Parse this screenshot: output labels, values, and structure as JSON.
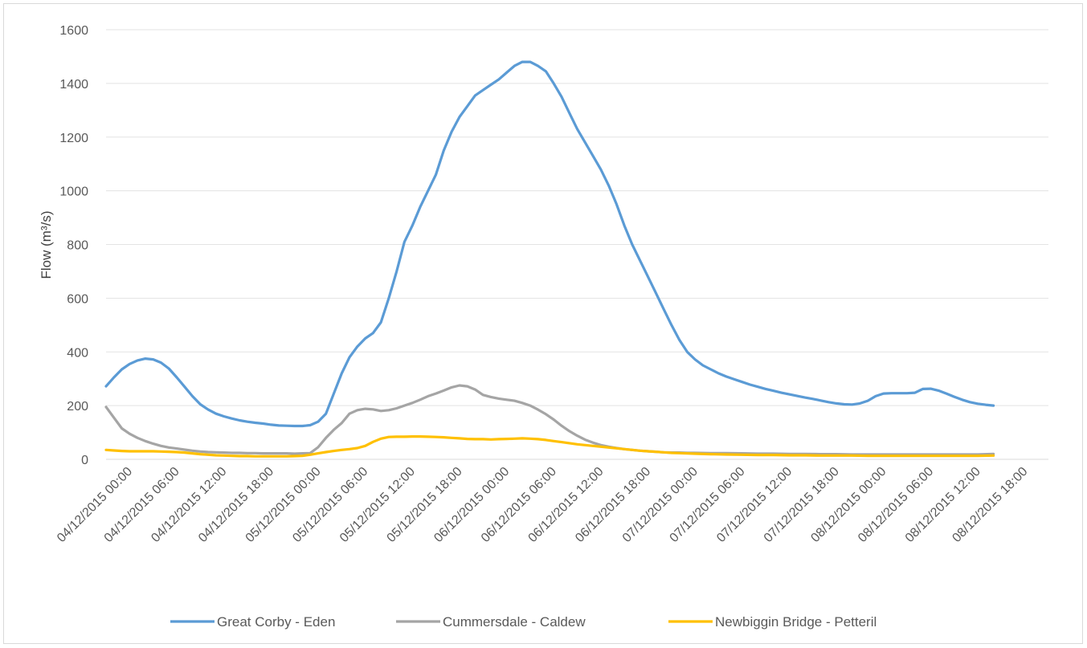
{
  "chart_data": {
    "type": "line",
    "title": "",
    "xlabel": "",
    "ylabel": "Flow (m³/s)",
    "ylim": [
      0,
      1600
    ],
    "yticks": [
      0,
      200,
      400,
      600,
      800,
      1000,
      1200,
      1400,
      1600
    ],
    "grid": "horizontal",
    "legend_position": "bottom",
    "x_unit": "hours from 04/12/2015 00:00",
    "xlim": [
      -3,
      117
    ],
    "x_tick_labels": [
      {
        "x": 0,
        "label": "04/12/2015 00:00"
      },
      {
        "x": 6,
        "label": "04/12/2015 06:00"
      },
      {
        "x": 12,
        "label": "04/12/2015 12:00"
      },
      {
        "x": 18,
        "label": "04/12/2015 18:00"
      },
      {
        "x": 24,
        "label": "05/12/2015 00:00"
      },
      {
        "x": 30,
        "label": "05/12/2015 06:00"
      },
      {
        "x": 36,
        "label": "05/12/2015 12:00"
      },
      {
        "x": 42,
        "label": "05/12/2015 18:00"
      },
      {
        "x": 48,
        "label": "06/12/2015 00:00"
      },
      {
        "x": 54,
        "label": "06/12/2015 06:00"
      },
      {
        "x": 60,
        "label": "06/12/2015 12:00"
      },
      {
        "x": 66,
        "label": "06/12/2015 18:00"
      },
      {
        "x": 72,
        "label": "07/12/2015 00:00"
      },
      {
        "x": 78,
        "label": "07/12/2015 06:00"
      },
      {
        "x": 84,
        "label": "07/12/2015 12:00"
      },
      {
        "x": 90,
        "label": "07/12/2015 18:00"
      },
      {
        "x": 96,
        "label": "08/12/2015 00:00"
      },
      {
        "x": 102,
        "label": "08/12/2015 06:00"
      },
      {
        "x": 108,
        "label": "08/12/2015 12:00"
      },
      {
        "x": 114,
        "label": "08/12/2015 18:00"
      }
    ],
    "series": [
      {
        "name": "Great Corby - Eden",
        "color": "#5b9bd5",
        "points": [
          [
            -3,
            272
          ],
          [
            -2,
            305
          ],
          [
            -1,
            335
          ],
          [
            0,
            355
          ],
          [
            1,
            368
          ],
          [
            2,
            375
          ],
          [
            3,
            372
          ],
          [
            4,
            360
          ],
          [
            5,
            338
          ],
          [
            6,
            305
          ],
          [
            7,
            270
          ],
          [
            8,
            235
          ],
          [
            9,
            205
          ],
          [
            10,
            185
          ],
          [
            11,
            170
          ],
          [
            12,
            160
          ],
          [
            13,
            152
          ],
          [
            14,
            145
          ],
          [
            15,
            140
          ],
          [
            16,
            136
          ],
          [
            17,
            133
          ],
          [
            18,
            129
          ],
          [
            19,
            126
          ],
          [
            20,
            125
          ],
          [
            21,
            124
          ],
          [
            22,
            124
          ],
          [
            23,
            127
          ],
          [
            24,
            140
          ],
          [
            25,
            170
          ],
          [
            26,
            245
          ],
          [
            27,
            320
          ],
          [
            28,
            380
          ],
          [
            29,
            420
          ],
          [
            30,
            450
          ],
          [
            31,
            470
          ],
          [
            32,
            510
          ],
          [
            33,
            600
          ],
          [
            34,
            700
          ],
          [
            35,
            810
          ],
          [
            36,
            870
          ],
          [
            37,
            940
          ],
          [
            38,
            1000
          ],
          [
            39,
            1060
          ],
          [
            40,
            1150
          ],
          [
            41,
            1220
          ],
          [
            42,
            1275
          ],
          [
            43,
            1315
          ],
          [
            44,
            1355
          ],
          [
            45,
            1375
          ],
          [
            46,
            1395
          ],
          [
            47,
            1415
          ],
          [
            48,
            1440
          ],
          [
            49,
            1465
          ],
          [
            50,
            1480
          ],
          [
            51,
            1480
          ],
          [
            52,
            1465
          ],
          [
            53,
            1445
          ],
          [
            54,
            1400
          ],
          [
            55,
            1350
          ],
          [
            56,
            1290
          ],
          [
            57,
            1230
          ],
          [
            58,
            1180
          ],
          [
            59,
            1130
          ],
          [
            60,
            1080
          ],
          [
            61,
            1020
          ],
          [
            62,
            950
          ],
          [
            63,
            870
          ],
          [
            64,
            800
          ],
          [
            65,
            740
          ],
          [
            66,
            680
          ],
          [
            67,
            620
          ],
          [
            68,
            560
          ],
          [
            69,
            500
          ],
          [
            70,
            445
          ],
          [
            71,
            400
          ],
          [
            72,
            372
          ],
          [
            73,
            350
          ],
          [
            74,
            335
          ],
          [
            75,
            320
          ],
          [
            76,
            308
          ],
          [
            77,
            298
          ],
          [
            78,
            288
          ],
          [
            79,
            278
          ],
          [
            80,
            270
          ],
          [
            81,
            262
          ],
          [
            82,
            255
          ],
          [
            83,
            248
          ],
          [
            84,
            242
          ],
          [
            85,
            236
          ],
          [
            86,
            230
          ],
          [
            87,
            225
          ],
          [
            88,
            219
          ],
          [
            89,
            213
          ],
          [
            90,
            208
          ],
          [
            91,
            205
          ],
          [
            92,
            204
          ],
          [
            93,
            208
          ],
          [
            94,
            218
          ],
          [
            95,
            235
          ],
          [
            96,
            245
          ],
          [
            97,
            246
          ],
          [
            98,
            246
          ],
          [
            99,
            246
          ],
          [
            100,
            248
          ],
          [
            101,
            262
          ],
          [
            102,
            263
          ],
          [
            103,
            256
          ],
          [
            104,
            245
          ],
          [
            105,
            233
          ],
          [
            106,
            222
          ],
          [
            107,
            213
          ],
          [
            108,
            207
          ],
          [
            109,
            203
          ],
          [
            110,
            200
          ]
        ]
      },
      {
        "name": "Cummersdale - Caldew",
        "color": "#a5a5a5",
        "points": [
          [
            -3,
            195
          ],
          [
            -2,
            155
          ],
          [
            -1,
            115
          ],
          [
            0,
            95
          ],
          [
            1,
            80
          ],
          [
            2,
            68
          ],
          [
            3,
            58
          ],
          [
            4,
            50
          ],
          [
            5,
            44
          ],
          [
            6,
            40
          ],
          [
            7,
            36
          ],
          [
            8,
            32
          ],
          [
            9,
            29
          ],
          [
            10,
            27
          ],
          [
            11,
            26
          ],
          [
            12,
            25
          ],
          [
            13,
            24
          ],
          [
            14,
            24
          ],
          [
            15,
            23
          ],
          [
            16,
            23
          ],
          [
            17,
            22
          ],
          [
            18,
            22
          ],
          [
            19,
            22
          ],
          [
            20,
            22
          ],
          [
            21,
            21
          ],
          [
            22,
            22
          ],
          [
            23,
            23
          ],
          [
            24,
            45
          ],
          [
            25,
            80
          ],
          [
            26,
            110
          ],
          [
            27,
            135
          ],
          [
            28,
            170
          ],
          [
            29,
            183
          ],
          [
            30,
            188
          ],
          [
            31,
            186
          ],
          [
            32,
            180
          ],
          [
            33,
            183
          ],
          [
            34,
            190
          ],
          [
            35,
            200
          ],
          [
            36,
            210
          ],
          [
            37,
            222
          ],
          [
            38,
            235
          ],
          [
            39,
            245
          ],
          [
            40,
            256
          ],
          [
            41,
            268
          ],
          [
            42,
            275
          ],
          [
            43,
            272
          ],
          [
            44,
            260
          ],
          [
            45,
            240
          ],
          [
            46,
            232
          ],
          [
            47,
            226
          ],
          [
            48,
            222
          ],
          [
            49,
            218
          ],
          [
            50,
            210
          ],
          [
            51,
            200
          ],
          [
            52,
            185
          ],
          [
            53,
            168
          ],
          [
            54,
            148
          ],
          [
            55,
            125
          ],
          [
            56,
            105
          ],
          [
            57,
            88
          ],
          [
            58,
            73
          ],
          [
            59,
            62
          ],
          [
            60,
            53
          ],
          [
            61,
            47
          ],
          [
            62,
            42
          ],
          [
            63,
            38
          ],
          [
            64,
            35
          ],
          [
            65,
            32
          ],
          [
            66,
            30
          ],
          [
            67,
            28
          ],
          [
            68,
            26
          ],
          [
            69,
            25
          ],
          [
            70,
            25
          ],
          [
            71,
            24
          ],
          [
            72,
            24
          ],
          [
            74,
            23
          ],
          [
            76,
            23
          ],
          [
            78,
            22
          ],
          [
            80,
            21
          ],
          [
            82,
            21
          ],
          [
            84,
            20
          ],
          [
            86,
            20
          ],
          [
            88,
            19
          ],
          [
            90,
            19
          ],
          [
            92,
            18
          ],
          [
            94,
            18
          ],
          [
            96,
            18
          ],
          [
            98,
            18
          ],
          [
            100,
            18
          ],
          [
            102,
            18
          ],
          [
            104,
            18
          ],
          [
            106,
            18
          ],
          [
            108,
            18
          ],
          [
            110,
            20
          ]
        ]
      },
      {
        "name": "Newbiggin Bridge - Petteril",
        "color": "#ffc000",
        "points": [
          [
            -3,
            35
          ],
          [
            -2,
            33
          ],
          [
            -1,
            31
          ],
          [
            0,
            30
          ],
          [
            1,
            30
          ],
          [
            2,
            30
          ],
          [
            3,
            30
          ],
          [
            4,
            29
          ],
          [
            5,
            28
          ],
          [
            6,
            27
          ],
          [
            7,
            25
          ],
          [
            8,
            22
          ],
          [
            9,
            19
          ],
          [
            10,
            17
          ],
          [
            11,
            15
          ],
          [
            12,
            14
          ],
          [
            13,
            13
          ],
          [
            14,
            12
          ],
          [
            15,
            12
          ],
          [
            16,
            11
          ],
          [
            17,
            11
          ],
          [
            18,
            11
          ],
          [
            19,
            11
          ],
          [
            20,
            11
          ],
          [
            21,
            12
          ],
          [
            22,
            13
          ],
          [
            23,
            17
          ],
          [
            24,
            22
          ],
          [
            25,
            27
          ],
          [
            26,
            31
          ],
          [
            27,
            35
          ],
          [
            28,
            38
          ],
          [
            29,
            42
          ],
          [
            30,
            50
          ],
          [
            31,
            65
          ],
          [
            32,
            77
          ],
          [
            33,
            83
          ],
          [
            34,
            84
          ],
          [
            35,
            84
          ],
          [
            36,
            85
          ],
          [
            37,
            85
          ],
          [
            38,
            84
          ],
          [
            39,
            83
          ],
          [
            40,
            82
          ],
          [
            41,
            80
          ],
          [
            42,
            78
          ],
          [
            43,
            76
          ],
          [
            44,
            75
          ],
          [
            45,
            75
          ],
          [
            46,
            74
          ],
          [
            47,
            75
          ],
          [
            48,
            76
          ],
          [
            49,
            77
          ],
          [
            50,
            78
          ],
          [
            51,
            77
          ],
          [
            52,
            75
          ],
          [
            53,
            72
          ],
          [
            54,
            68
          ],
          [
            55,
            64
          ],
          [
            56,
            60
          ],
          [
            57,
            56
          ],
          [
            58,
            53
          ],
          [
            59,
            50
          ],
          [
            60,
            47
          ],
          [
            61,
            44
          ],
          [
            62,
            41
          ],
          [
            63,
            38
          ],
          [
            64,
            35
          ],
          [
            65,
            32
          ],
          [
            66,
            30
          ],
          [
            67,
            28
          ],
          [
            68,
            26
          ],
          [
            69,
            24
          ],
          [
            70,
            23
          ],
          [
            72,
            21
          ],
          [
            74,
            19
          ],
          [
            76,
            18
          ],
          [
            78,
            17
          ],
          [
            80,
            16
          ],
          [
            82,
            16
          ],
          [
            84,
            15
          ],
          [
            86,
            15
          ],
          [
            88,
            14
          ],
          [
            90,
            14
          ],
          [
            92,
            14
          ],
          [
            94,
            13
          ],
          [
            96,
            13
          ],
          [
            98,
            13
          ],
          [
            100,
            13
          ],
          [
            102,
            13
          ],
          [
            104,
            13
          ],
          [
            106,
            13
          ],
          [
            108,
            13
          ],
          [
            110,
            14
          ]
        ]
      }
    ]
  }
}
